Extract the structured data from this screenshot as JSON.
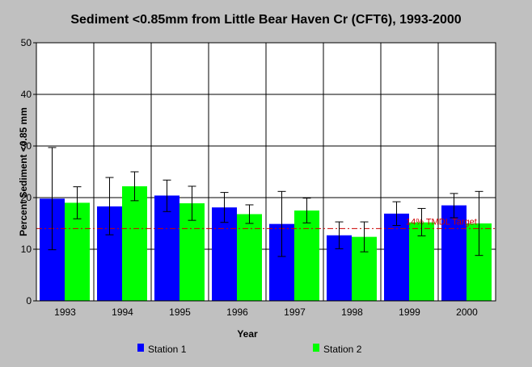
{
  "chart_data": {
    "type": "bar",
    "title": "Sediment <0.85mm from Little Bear Haven Cr (CFT6), 1993-2000",
    "xlabel": "Year",
    "ylabel": "Percent Sediment <0.85 mm",
    "categories": [
      "1993",
      "1994",
      "1995",
      "1996",
      "1997",
      "1998",
      "1999",
      "2000"
    ],
    "ylim": [
      0,
      50
    ],
    "yticks": [
      0,
      10,
      20,
      30,
      40,
      50
    ],
    "grid": true,
    "legend_position": "bottom",
    "series": [
      {
        "name": "Station 1",
        "color": "#0000ff",
        "values": [
          19.8,
          18.3,
          20.4,
          18.1,
          14.9,
          12.7,
          16.9,
          18.5
        ],
        "error_low": [
          9.9,
          12.8,
          17.3,
          15.2,
          8.6,
          10.1,
          14.6,
          16.1
        ],
        "error_high": [
          29.7,
          23.9,
          23.4,
          21.0,
          21.2,
          15.3,
          19.2,
          20.8
        ]
      },
      {
        "name": "Station 2",
        "color": "#00ff00",
        "values": [
          19.0,
          22.2,
          18.9,
          16.8,
          17.5,
          12.4,
          15.2,
          15.0
        ],
        "error_low": [
          15.9,
          19.4,
          15.6,
          15.0,
          15.1,
          9.5,
          12.6,
          8.8
        ],
        "error_high": [
          22.1,
          25.0,
          22.2,
          18.6,
          19.9,
          15.3,
          17.9,
          21.2
        ]
      }
    ],
    "reference_line": {
      "value": 14,
      "label": "14% TMDL Target",
      "color": "#cc0000"
    }
  }
}
